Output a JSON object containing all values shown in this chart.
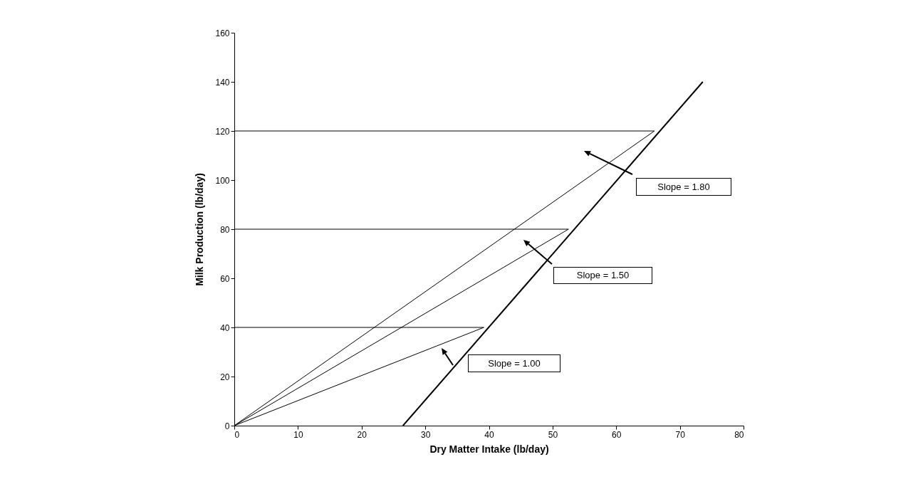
{
  "chart_data": {
    "type": "line",
    "xlabel": "Dry Matter Intake (lb/day)",
    "ylabel": "Milk Production (lb/day)",
    "xlim": [
      0,
      80
    ],
    "xticks": [
      0,
      10,
      20,
      30,
      40,
      50,
      60,
      70,
      80
    ],
    "ylim": [
      0,
      160
    ],
    "yticks": [
      0,
      20,
      40,
      60,
      80,
      100,
      120,
      140,
      160
    ],
    "grid": false,
    "marker": "none",
    "line_style": "solid",
    "series": [
      {
        "color": "#000000",
        "x": [
          26.5,
          73.6
        ],
        "values": [
          0,
          140
        ]
      },
      {
        "color": "#000000",
        "x": [
          0,
          66
        ],
        "values": [
          0,
          120
        ]
      },
      {
        "color": "#000000",
        "x": [
          0,
          52.5
        ],
        "values": [
          0,
          80
        ]
      },
      {
        "color": "#000000",
        "x": [
          0,
          39.2
        ],
        "values": [
          0,
          40
        ]
      },
      {
        "color": "#000000",
        "x": [
          0,
          66
        ],
        "values": [
          120,
          120
        ]
      },
      {
        "color": "#000000",
        "x": [
          0,
          52.5
        ],
        "values": [
          80,
          80
        ]
      },
      {
        "color": "#000000",
        "x": [
          0,
          39.2
        ],
        "values": [
          40,
          40
        ]
      }
    ],
    "annotations": [
      "Slope = 1.80",
      "Slope = 1.50",
      "Slope = 1.00"
    ]
  }
}
